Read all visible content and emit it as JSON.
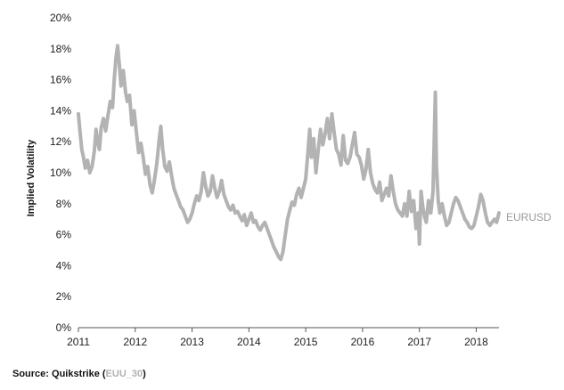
{
  "source": {
    "prefix": "Source: Quikstrike (",
    "code": "EUU_30",
    "suffix": ")"
  },
  "colors": {
    "series": "#b3b3b3",
    "axis": "#555555",
    "code": "#b0b0b0"
  },
  "chart_data": {
    "type": "line",
    "ylabel": "Implied Volatility",
    "xlim": [
      2011,
      2018.4
    ],
    "ylim": [
      0,
      20
    ],
    "xticks": [
      "2011",
      "2012",
      "2013",
      "2014",
      "2015",
      "2016",
      "2017",
      "2018"
    ],
    "yticks": [
      "0%",
      "2%",
      "4%",
      "6%",
      "8%",
      "10%",
      "12%",
      "14%",
      "16%",
      "18%",
      "20%"
    ],
    "grid": false,
    "series": [
      {
        "name": "EURUSD",
        "points": [
          [
            2011.0,
            13.8
          ],
          [
            2011.03,
            12.6
          ],
          [
            2011.06,
            11.5
          ],
          [
            2011.09,
            11.0
          ],
          [
            2011.12,
            10.3
          ],
          [
            2011.16,
            10.8
          ],
          [
            2011.2,
            10.0
          ],
          [
            2011.24,
            10.4
          ],
          [
            2011.28,
            11.4
          ],
          [
            2011.31,
            12.8
          ],
          [
            2011.34,
            12.0
          ],
          [
            2011.37,
            11.5
          ],
          [
            2011.4,
            12.9
          ],
          [
            2011.44,
            13.5
          ],
          [
            2011.48,
            12.7
          ],
          [
            2011.52,
            13.7
          ],
          [
            2011.56,
            14.6
          ],
          [
            2011.6,
            14.2
          ],
          [
            2011.63,
            16.0
          ],
          [
            2011.66,
            17.4
          ],
          [
            2011.69,
            18.2
          ],
          [
            2011.72,
            17.0
          ],
          [
            2011.75,
            15.6
          ],
          [
            2011.79,
            16.6
          ],
          [
            2011.83,
            15.2
          ],
          [
            2011.86,
            14.6
          ],
          [
            2011.9,
            15.0
          ],
          [
            2011.94,
            13.1
          ],
          [
            2011.98,
            14.0
          ],
          [
            2012.02,
            12.6
          ],
          [
            2012.06,
            11.3
          ],
          [
            2012.1,
            11.9
          ],
          [
            2012.14,
            11.0
          ],
          [
            2012.18,
            9.9
          ],
          [
            2012.22,
            10.4
          ],
          [
            2012.26,
            9.2
          ],
          [
            2012.3,
            8.7
          ],
          [
            2012.34,
            9.6
          ],
          [
            2012.38,
            10.6
          ],
          [
            2012.42,
            12.1
          ],
          [
            2012.45,
            13.0
          ],
          [
            2012.48,
            11.6
          ],
          [
            2012.52,
            10.4
          ],
          [
            2012.56,
            10.1
          ],
          [
            2012.6,
            10.7
          ],
          [
            2012.64,
            9.8
          ],
          [
            2012.68,
            9.0
          ],
          [
            2012.72,
            8.6
          ],
          [
            2012.76,
            8.2
          ],
          [
            2012.8,
            7.8
          ],
          [
            2012.84,
            7.6
          ],
          [
            2012.88,
            7.2
          ],
          [
            2012.92,
            6.8
          ],
          [
            2012.96,
            7.0
          ],
          [
            2013.0,
            7.4
          ],
          [
            2013.04,
            8.0
          ],
          [
            2013.08,
            8.5
          ],
          [
            2013.12,
            8.2
          ],
          [
            2013.16,
            8.8
          ],
          [
            2013.2,
            10.0
          ],
          [
            2013.24,
            9.1
          ],
          [
            2013.28,
            8.5
          ],
          [
            2013.32,
            8.8
          ],
          [
            2013.36,
            9.8
          ],
          [
            2013.4,
            9.0
          ],
          [
            2013.44,
            8.4
          ],
          [
            2013.48,
            8.8
          ],
          [
            2013.52,
            9.5
          ],
          [
            2013.56,
            8.6
          ],
          [
            2013.6,
            8.2
          ],
          [
            2013.64,
            7.8
          ],
          [
            2013.68,
            7.6
          ],
          [
            2013.72,
            7.9
          ],
          [
            2013.76,
            7.4
          ],
          [
            2013.8,
            7.5
          ],
          [
            2013.84,
            7.2
          ],
          [
            2013.88,
            6.9
          ],
          [
            2013.92,
            7.3
          ],
          [
            2013.96,
            6.6
          ],
          [
            2014.0,
            7.0
          ],
          [
            2014.04,
            7.4
          ],
          [
            2014.08,
            6.8
          ],
          [
            2014.12,
            6.9
          ],
          [
            2014.16,
            6.5
          ],
          [
            2014.2,
            6.3
          ],
          [
            2014.24,
            6.6
          ],
          [
            2014.28,
            6.8
          ],
          [
            2014.32,
            6.4
          ],
          [
            2014.36,
            6.0
          ],
          [
            2014.4,
            5.6
          ],
          [
            2014.44,
            5.2
          ],
          [
            2014.48,
            4.9
          ],
          [
            2014.52,
            4.6
          ],
          [
            2014.56,
            4.4
          ],
          [
            2014.6,
            4.9
          ],
          [
            2014.64,
            6.0
          ],
          [
            2014.68,
            7.0
          ],
          [
            2014.72,
            7.6
          ],
          [
            2014.76,
            8.1
          ],
          [
            2014.8,
            7.9
          ],
          [
            2014.84,
            8.6
          ],
          [
            2014.88,
            9.0
          ],
          [
            2014.92,
            8.4
          ],
          [
            2014.96,
            9.0
          ],
          [
            2015.0,
            9.6
          ],
          [
            2015.04,
            11.4
          ],
          [
            2015.07,
            12.8
          ],
          [
            2015.1,
            11.0
          ],
          [
            2015.14,
            12.2
          ],
          [
            2015.18,
            10.0
          ],
          [
            2015.22,
            11.5
          ],
          [
            2015.26,
            12.8
          ],
          [
            2015.3,
            11.8
          ],
          [
            2015.34,
            12.5
          ],
          [
            2015.38,
            13.5
          ],
          [
            2015.42,
            12.2
          ],
          [
            2015.46,
            13.8
          ],
          [
            2015.5,
            12.6
          ],
          [
            2015.54,
            11.5
          ],
          [
            2015.58,
            11.2
          ],
          [
            2015.62,
            10.5
          ],
          [
            2015.66,
            12.4
          ],
          [
            2015.7,
            10.8
          ],
          [
            2015.74,
            10.6
          ],
          [
            2015.78,
            11.0
          ],
          [
            2015.82,
            11.8
          ],
          [
            2015.86,
            12.6
          ],
          [
            2015.9,
            11.2
          ],
          [
            2015.94,
            11.0
          ],
          [
            2015.98,
            10.5
          ],
          [
            2016.02,
            9.6
          ],
          [
            2016.06,
            10.2
          ],
          [
            2016.1,
            11.5
          ],
          [
            2016.14,
            10.0
          ],
          [
            2016.18,
            9.3
          ],
          [
            2016.22,
            8.9
          ],
          [
            2016.26,
            8.7
          ],
          [
            2016.3,
            9.4
          ],
          [
            2016.34,
            8.2
          ],
          [
            2016.38,
            8.6
          ],
          [
            2016.42,
            9.0
          ],
          [
            2016.46,
            8.5
          ],
          [
            2016.5,
            9.8
          ],
          [
            2016.54,
            8.8
          ],
          [
            2016.58,
            8.0
          ],
          [
            2016.62,
            7.6
          ],
          [
            2016.66,
            7.4
          ],
          [
            2016.7,
            7.2
          ],
          [
            2016.74,
            8.0
          ],
          [
            2016.78,
            7.2
          ],
          [
            2016.82,
            8.8
          ],
          [
            2016.86,
            7.5
          ],
          [
            2016.9,
            8.2
          ],
          [
            2016.94,
            6.4
          ],
          [
            2016.98,
            7.4
          ],
          [
            2017.0,
            5.4
          ],
          [
            2017.03,
            8.8
          ],
          [
            2017.06,
            7.8
          ],
          [
            2017.09,
            7.2
          ],
          [
            2017.12,
            6.8
          ],
          [
            2017.16,
            8.2
          ],
          [
            2017.2,
            7.4
          ],
          [
            2017.24,
            8.8
          ],
          [
            2017.28,
            15.2
          ],
          [
            2017.3,
            10.5
          ],
          [
            2017.33,
            8.2
          ],
          [
            2017.36,
            7.4
          ],
          [
            2017.4,
            8.0
          ],
          [
            2017.44,
            7.2
          ],
          [
            2017.48,
            6.6
          ],
          [
            2017.52,
            6.8
          ],
          [
            2017.56,
            7.4
          ],
          [
            2017.6,
            8.0
          ],
          [
            2017.64,
            8.4
          ],
          [
            2017.68,
            8.2
          ],
          [
            2017.72,
            7.8
          ],
          [
            2017.76,
            7.4
          ],
          [
            2017.8,
            7.0
          ],
          [
            2017.84,
            6.8
          ],
          [
            2017.88,
            6.5
          ],
          [
            2017.92,
            6.4
          ],
          [
            2017.96,
            6.6
          ],
          [
            2018.0,
            7.2
          ],
          [
            2018.04,
            7.8
          ],
          [
            2018.08,
            8.6
          ],
          [
            2018.12,
            8.2
          ],
          [
            2018.16,
            7.4
          ],
          [
            2018.2,
            6.8
          ],
          [
            2018.24,
            6.6
          ],
          [
            2018.28,
            6.8
          ],
          [
            2018.32,
            7.0
          ],
          [
            2018.36,
            6.8
          ],
          [
            2018.4,
            7.4
          ]
        ]
      }
    ]
  }
}
